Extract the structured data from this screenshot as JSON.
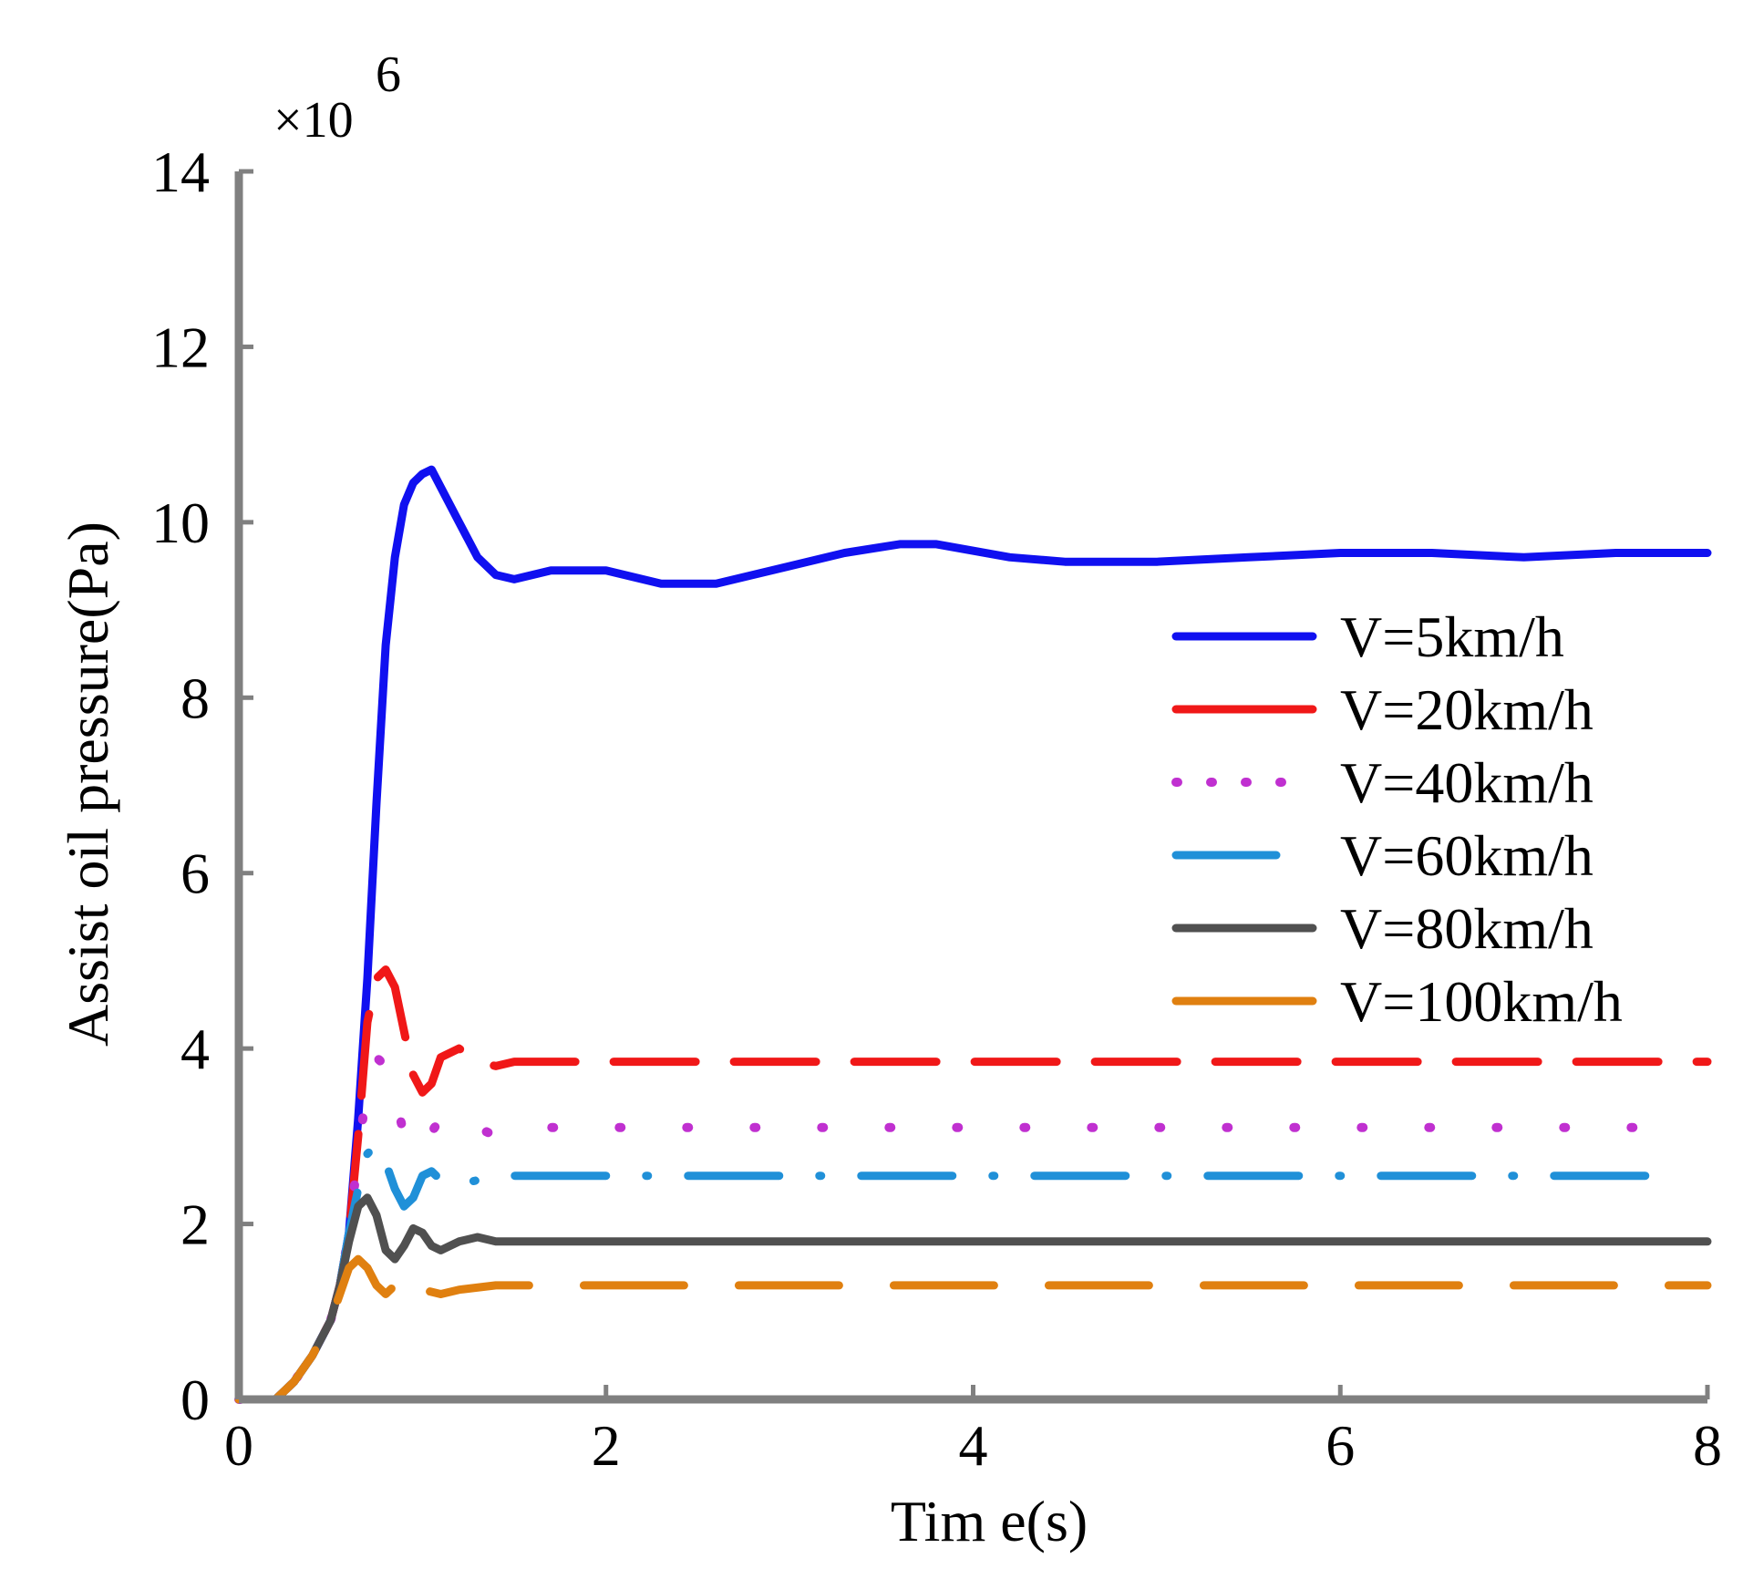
{
  "chart_data": {
    "type": "line",
    "title": "",
    "xlabel": "Tim e(s)",
    "ylabel": "Assist oil pressure(Pa)",
    "multiplier": {
      "base": "×10",
      "exponent": "6"
    },
    "xlim": [
      0,
      8
    ],
    "ylim": [
      0,
      14
    ],
    "xticks": [
      0,
      2,
      4,
      6,
      8
    ],
    "yticks": [
      0,
      2,
      4,
      6,
      8,
      10,
      12,
      14
    ],
    "grid": false,
    "legend_position": "right",
    "colors": {
      "axis": "#808080",
      "v5": "#1010f0",
      "v20": "#f01818",
      "v40": "#c030d0",
      "v60": "#2090d8",
      "v80": "#505050",
      "v100": "#e08010"
    },
    "series": [
      {
        "name": "V=5km/h",
        "key": "v5",
        "style": "solid",
        "x": [
          0,
          0.2,
          0.3,
          0.4,
          0.5,
          0.55,
          0.6,
          0.65,
          0.7,
          0.75,
          0.8,
          0.85,
          0.9,
          0.95,
          1.0,
          1.05,
          1.1,
          1.2,
          1.3,
          1.4,
          1.5,
          1.7,
          2.0,
          2.3,
          2.6,
          3.0,
          3.3,
          3.6,
          3.8,
          4.2,
          4.5,
          5.0,
          5.5,
          6.0,
          6.5,
          7.0,
          7.5,
          8.0
        ],
        "values": [
          0,
          0,
          0.2,
          0.5,
          0.9,
          1.3,
          1.9,
          3.2,
          4.8,
          6.8,
          8.6,
          9.6,
          10.2,
          10.45,
          10.55,
          10.6,
          10.4,
          10.0,
          9.6,
          9.4,
          9.35,
          9.45,
          9.45,
          9.3,
          9.3,
          9.5,
          9.65,
          9.75,
          9.75,
          9.6,
          9.55,
          9.55,
          9.6,
          9.65,
          9.65,
          9.6,
          9.65,
          9.65
        ]
      },
      {
        "name": "V=20km/h",
        "key": "v20",
        "style": "dash",
        "x": [
          0,
          0.2,
          0.3,
          0.4,
          0.5,
          0.55,
          0.6,
          0.65,
          0.7,
          0.75,
          0.8,
          0.85,
          0.9,
          0.95,
          1.0,
          1.05,
          1.1,
          1.2,
          1.3,
          1.4,
          1.5,
          1.6,
          1.8,
          2.0,
          3.0,
          4.0,
          5.0,
          6.0,
          7.0,
          8.0
        ],
        "values": [
          0,
          0,
          0.2,
          0.5,
          0.9,
          1.3,
          1.9,
          3.0,
          4.3,
          4.8,
          4.9,
          4.7,
          4.2,
          3.7,
          3.5,
          3.6,
          3.9,
          4.0,
          3.85,
          3.8,
          3.85,
          3.85,
          3.85,
          3.85,
          3.85,
          3.85,
          3.85,
          3.85,
          3.85,
          3.85
        ]
      },
      {
        "name": "V=40km/h",
        "key": "v40",
        "style": "dot",
        "x": [
          0,
          0.2,
          0.3,
          0.4,
          0.5,
          0.55,
          0.6,
          0.65,
          0.7,
          0.75,
          0.8,
          0.85,
          0.9,
          0.95,
          1.0,
          1.1,
          1.2,
          1.3,
          1.4,
          1.5,
          1.6,
          2.0,
          3.0,
          4.0,
          5.0,
          6.0,
          7.0,
          7.9
        ],
        "values": [
          0,
          0,
          0.2,
          0.5,
          0.9,
          1.3,
          1.9,
          2.8,
          3.6,
          3.9,
          3.8,
          3.5,
          3.0,
          2.8,
          2.9,
          3.2,
          3.3,
          3.1,
          3.0,
          3.05,
          3.1,
          3.1,
          3.1,
          3.1,
          3.1,
          3.1,
          3.1,
          3.1
        ]
      },
      {
        "name": "V=60km/h",
        "key": "v60",
        "style": "dashdot",
        "x": [
          0,
          0.2,
          0.3,
          0.4,
          0.5,
          0.55,
          0.6,
          0.65,
          0.7,
          0.75,
          0.8,
          0.85,
          0.9,
          0.95,
          1.0,
          1.05,
          1.1,
          1.2,
          1.3,
          1.4,
          1.5,
          2.0,
          3.0,
          4.0,
          5.0,
          6.0,
          7.0,
          7.85
        ],
        "values": [
          0,
          0,
          0.2,
          0.5,
          0.9,
          1.3,
          1.9,
          2.4,
          2.8,
          2.9,
          2.7,
          2.4,
          2.2,
          2.3,
          2.55,
          2.6,
          2.5,
          2.45,
          2.5,
          2.55,
          2.55,
          2.55,
          2.55,
          2.55,
          2.55,
          2.55,
          2.55,
          2.55
        ]
      },
      {
        "name": "V=80km/h",
        "key": "v80",
        "style": "solid",
        "x": [
          0,
          0.2,
          0.3,
          0.4,
          0.5,
          0.55,
          0.6,
          0.65,
          0.7,
          0.75,
          0.8,
          0.85,
          0.9,
          0.95,
          1.0,
          1.05,
          1.1,
          1.2,
          1.3,
          1.4,
          1.5,
          2.0,
          3.0,
          4.0,
          5.0,
          6.0,
          7.0,
          8.0
        ],
        "values": [
          0,
          0,
          0.2,
          0.5,
          0.9,
          1.3,
          1.8,
          2.2,
          2.3,
          2.1,
          1.7,
          1.6,
          1.75,
          1.95,
          1.9,
          1.75,
          1.7,
          1.8,
          1.85,
          1.8,
          1.8,
          1.8,
          1.8,
          1.8,
          1.8,
          1.8,
          1.8,
          1.8
        ]
      },
      {
        "name": "V=100km/h",
        "key": "v100",
        "style": "longdash",
        "x": [
          0,
          0.2,
          0.3,
          0.4,
          0.5,
          0.55,
          0.6,
          0.65,
          0.7,
          0.75,
          0.8,
          0.85,
          0.9,
          0.95,
          1.0,
          1.1,
          1.2,
          1.4,
          1.6,
          2.0,
          3.0,
          4.0,
          5.0,
          6.0,
          7.0,
          8.0
        ],
        "values": [
          0,
          0,
          0.2,
          0.5,
          0.9,
          1.2,
          1.5,
          1.6,
          1.5,
          1.3,
          1.2,
          1.3,
          1.45,
          1.4,
          1.25,
          1.2,
          1.25,
          1.3,
          1.3,
          1.3,
          1.3,
          1.3,
          1.3,
          1.3,
          1.3,
          1.3
        ]
      }
    ]
  }
}
